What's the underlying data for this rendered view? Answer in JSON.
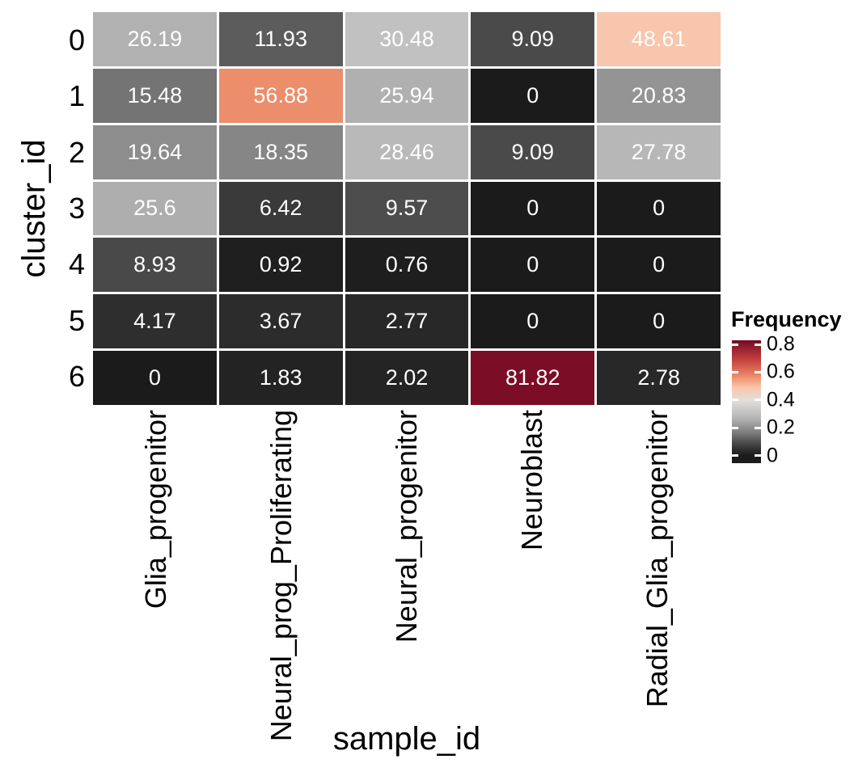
{
  "chart_data": {
    "type": "heatmap",
    "xlabel": "sample_id",
    "ylabel": "cluster_id",
    "rows": [
      "0",
      "1",
      "2",
      "3",
      "4",
      "5",
      "6"
    ],
    "columns": [
      "Glia_progenitor",
      "Neural_prog_Proliferating",
      "Neural_progenitor",
      "Neuroblast",
      "Radial_Glia_progenitor"
    ],
    "values": [
      [
        26.19,
        11.93,
        30.48,
        9.09,
        48.61
      ],
      [
        15.48,
        56.88,
        25.94,
        0,
        20.83
      ],
      [
        19.64,
        18.35,
        28.46,
        9.09,
        27.78
      ],
      [
        25.6,
        6.42,
        9.57,
        0,
        0
      ],
      [
        8.93,
        0.92,
        0.76,
        0,
        0
      ],
      [
        4.17,
        3.67,
        2.77,
        0,
        0
      ],
      [
        0,
        1.83,
        2.02,
        81.82,
        2.78
      ]
    ],
    "value_scale_note": "cell labels are percentages; fill color = value/100 on the Frequency scale",
    "legend": {
      "title": "Frequency",
      "ticks": [
        "0.8",
        "0.6",
        "0.4",
        "0.2",
        "0"
      ],
      "tick_values": [
        0.8,
        0.6,
        0.4,
        0.2,
        0
      ]
    },
    "axis_ranges": {
      "fill_domain": [
        0,
        0.8182
      ]
    },
    "grid": false,
    "legend_position": "right",
    "colors": {
      "background": "#ffffff",
      "cell_text": "#ffffff",
      "axis_text": "#000000",
      "cell_gap": "#ffffff"
    },
    "colormap": [
      {
        "t": 0.0,
        "c": "#1b1b1b"
      },
      {
        "t": 0.05,
        "c": "#323232"
      },
      {
        "t": 0.1,
        "c": "#4f4f4f"
      },
      {
        "t": 0.16,
        "c": "#787878"
      },
      {
        "t": 0.2,
        "c": "#8f8f8f"
      },
      {
        "t": 0.26,
        "c": "#b0b0b0"
      },
      {
        "t": 0.31,
        "c": "#c3c3c3"
      },
      {
        "t": 0.4,
        "c": "#e2dedb"
      },
      {
        "t": 0.49,
        "c": "#f9c5ab"
      },
      {
        "t": 0.57,
        "c": "#ec8c6a"
      },
      {
        "t": 0.68,
        "c": "#c8463f"
      },
      {
        "t": 0.82,
        "c": "#7a0d26"
      },
      {
        "t": 0.9,
        "c": "#67001f"
      }
    ]
  }
}
